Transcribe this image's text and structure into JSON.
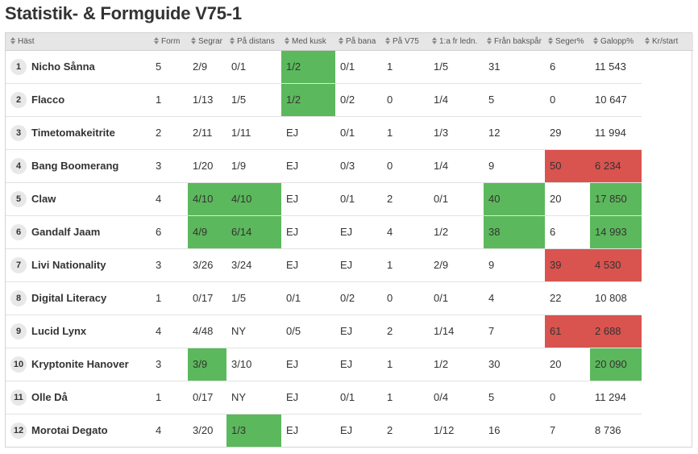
{
  "page": {
    "title": "Statistik- & Formguide V75-1"
  },
  "table": {
    "columns": [
      "Häst",
      "Form",
      "Segrar",
      "På distans",
      "Med kusk",
      "På bana",
      "På V75",
      "1:a fr ledn.",
      "Från bakspår",
      "Seger%",
      "Galopp%",
      "Kr/start"
    ],
    "rows": [
      {
        "nr": "1",
        "name": "Nicho Sånna",
        "cells": [
          "5",
          "2/9",
          "0/1",
          "1/2",
          "0/1",
          "1",
          "1/5",
          "31",
          "6",
          "11 543"
        ],
        "hl": {
          "5": "green"
        }
      },
      {
        "nr": "2",
        "name": "Flacco",
        "cells": [
          "1",
          "1/13",
          "1/5",
          "1/2",
          "0/2",
          "0",
          "1/4",
          "5",
          "0",
          "10 647"
        ],
        "hl": {
          "5": "green"
        }
      },
      {
        "nr": "3",
        "name": "Timetomakeitrite",
        "cells": [
          "2",
          "2/11",
          "1/11",
          "EJ",
          "0/1",
          "1",
          "1/3",
          "12",
          "29",
          "11 994"
        ],
        "hl": {}
      },
      {
        "nr": "4",
        "name": "Bang Boomerang",
        "cells": [
          "3",
          "1/20",
          "1/9",
          "EJ",
          "0/3",
          "0",
          "1/4",
          "9",
          "50",
          "6 234"
        ],
        "hl": {
          "10": "red",
          "11": "red"
        }
      },
      {
        "nr": "5",
        "name": "Claw",
        "cells": [
          "4",
          "4/10",
          "4/10",
          "EJ",
          "0/1",
          "2",
          "0/1",
          "40",
          "20",
          "17 850"
        ],
        "hl": {
          "3": "green",
          "4": "green",
          "9": "green",
          "11": "green"
        }
      },
      {
        "nr": "6",
        "name": "Gandalf Jaam",
        "cells": [
          "6",
          "4/9",
          "6/14",
          "EJ",
          "EJ",
          "4",
          "1/2",
          "38",
          "6",
          "14 993"
        ],
        "hl": {
          "3": "green",
          "4": "green",
          "9": "green",
          "11": "green"
        }
      },
      {
        "nr": "7",
        "name": "Livi Nationality",
        "cells": [
          "3",
          "3/26",
          "3/24",
          "EJ",
          "EJ",
          "1",
          "2/9",
          "9",
          "39",
          "4 530"
        ],
        "hl": {
          "10": "red",
          "11": "red"
        }
      },
      {
        "nr": "8",
        "name": "Digital Literacy",
        "cells": [
          "1",
          "0/17",
          "1/5",
          "0/1",
          "0/2",
          "0",
          "0/1",
          "4",
          "22",
          "10 808"
        ],
        "hl": {}
      },
      {
        "nr": "9",
        "name": "Lucid Lynx",
        "cells": [
          "4",
          "4/48",
          "NY",
          "0/5",
          "EJ",
          "2",
          "1/14",
          "7",
          "61",
          "2 688"
        ],
        "hl": {
          "10": "red",
          "11": "red"
        }
      },
      {
        "nr": "10",
        "name": "Kryptonite Hanover",
        "cells": [
          "3",
          "3/9",
          "3/10",
          "EJ",
          "EJ",
          "1",
          "1/2",
          "30",
          "20",
          "20 090"
        ],
        "hl": {
          "3": "green",
          "11": "green"
        }
      },
      {
        "nr": "11",
        "name": "Olle Då",
        "cells": [
          "1",
          "0/17",
          "NY",
          "EJ",
          "0/1",
          "1",
          "0/4",
          "5",
          "0",
          "11 294"
        ],
        "hl": {}
      },
      {
        "nr": "12",
        "name": "Morotai Degato",
        "cells": [
          "4",
          "3/20",
          "1/3",
          "EJ",
          "EJ",
          "2",
          "1/12",
          "16",
          "7",
          "8 736"
        ],
        "hl": {
          "4": "green"
        }
      }
    ]
  },
  "colors": {
    "green": "#5cb85c",
    "red": "#d9534f",
    "header_bg": "#e6e6e6"
  },
  "icons": {
    "sort": "sort-updown-icon"
  }
}
